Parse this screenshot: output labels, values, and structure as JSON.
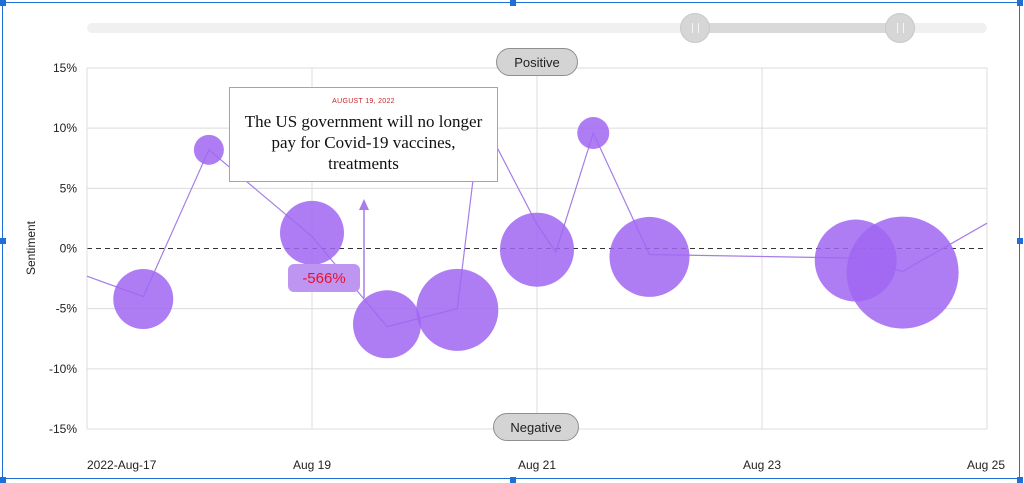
{
  "slider": {
    "range_start_fraction": 0.675,
    "range_end_fraction": 0.9
  },
  "pills": {
    "positive": "Positive",
    "negative": "Negative"
  },
  "tooltip": {
    "date": "AUGUST 19, 2022",
    "headline": "The US government will no longer pay for Covid-19 vaccines, treatments"
  },
  "badge": {
    "change": "-566%"
  },
  "colors": {
    "bubble": "#a066f2",
    "line": "#a57ee8",
    "tooltip_border": "#b98cf0",
    "date_red": "#c4282f",
    "badge_text": "#e8112d"
  },
  "chart_data": {
    "type": "scatter",
    "title": "",
    "xlabel": "",
    "ylabel": "Sentiment",
    "ylim": [
      -15,
      15
    ],
    "xlim": [
      "2022-08-17",
      "2022-08-25"
    ],
    "x_ticks": [
      "2022-Aug-17",
      "Aug 19",
      "Aug 21",
      "Aug 23",
      "Aug 25"
    ],
    "y_ticks": [
      "15%",
      "10%",
      "5%",
      "0%",
      "-5%",
      "-10%",
      "-15%"
    ],
    "grid": true,
    "zero_line": "dashed",
    "line_points": [
      {
        "x": "2022-08-17 00:00",
        "y": -2.3
      },
      {
        "x": "2022-08-17 12:00",
        "y": -4.0
      },
      {
        "x": "2022-08-18 02:00",
        "y": 8.2
      },
      {
        "x": "2022-08-19 00:00",
        "y": 1.0
      },
      {
        "x": "2022-08-19 16:00",
        "y": -6.5
      },
      {
        "x": "2022-08-20 07:00",
        "y": -5.0
      },
      {
        "x": "2022-08-20 12:00",
        "y": 11.0
      },
      {
        "x": "2022-08-21 00:00",
        "y": 2.0
      },
      {
        "x": "2022-08-21 04:00",
        "y": -0.3
      },
      {
        "x": "2022-08-21 12:00",
        "y": 9.6
      },
      {
        "x": "2022-08-22 00:00",
        "y": -0.5
      },
      {
        "x": "2022-08-23 20:00",
        "y": -0.8
      },
      {
        "x": "2022-08-24 06:00",
        "y": -1.9
      },
      {
        "x": "2022-08-25 00:00",
        "y": 2.1
      }
    ],
    "bubbles": [
      {
        "x": "2022-08-17 12:00",
        "y": -4.2,
        "size": 2
      },
      {
        "x": "2022-08-18 02:00",
        "y": 8.2,
        "size": 0.5
      },
      {
        "x": "2022-08-19 00:00",
        "y": 1.3,
        "size": 2.2
      },
      {
        "x": "2022-08-19 16:00",
        "y": -6.3,
        "size": 2.4
      },
      {
        "x": "2022-08-20 07:00",
        "y": -5.1,
        "size": 3.1
      },
      {
        "x": "2022-08-21 00:00",
        "y": -0.1,
        "size": 2.7
      },
      {
        "x": "2022-08-21 12:00",
        "y": 9.6,
        "size": 0.6
      },
      {
        "x": "2022-08-22 00:00",
        "y": -0.7,
        "size": 3.0
      },
      {
        "x": "2022-08-23 20:00",
        "y": -1.0,
        "size": 3.1
      },
      {
        "x": "2022-08-24 06:00",
        "y": -2.0,
        "size": 4.6
      }
    ]
  }
}
